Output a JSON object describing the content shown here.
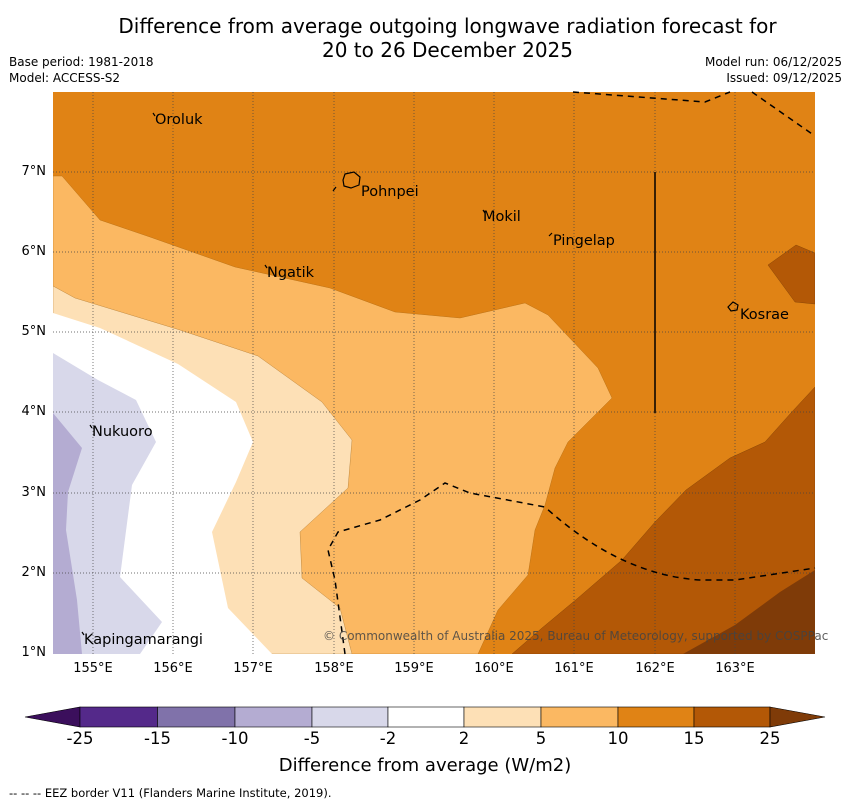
{
  "title_line1": "Difference from average outgoing longwave radiation forecast for",
  "title_line2": "20 to 26 December 2025",
  "meta": {
    "base_period": "Base period: 1981-2018",
    "model": "Model: ACCESS-S2",
    "model_run": "Model run: 06/12/2025",
    "issued": "Issued: 09/12/2025"
  },
  "map": {
    "lat_labels": [
      "7°N",
      "6°N",
      "5°N",
      "4°N",
      "3°N",
      "2°N",
      "1°N"
    ],
    "lon_labels": [
      "155°E",
      "156°E",
      "157°E",
      "158°E",
      "159°E",
      "160°E",
      "161°E",
      "162°E",
      "163°E"
    ],
    "places": {
      "oroluk": "Oroluk",
      "pohnpei": "Pohnpei",
      "mokil": "Mokil",
      "pingelap": "Pingelap",
      "ngatik": "Ngatik",
      "kosrae": "Kosrae",
      "nukuoro": "Nukuoro",
      "kapingamarangi": "Kapingamarangi"
    },
    "copyright": "© Commonwealth of Australia 2025, Bureau of Meteorology, supported by COSPPac"
  },
  "colorbar": {
    "labels": [
      "-25",
      "-15",
      "-10",
      "-5",
      "-2",
      "2",
      "5",
      "10",
      "15",
      "25"
    ],
    "colors": [
      "#3b0f5c",
      "#54298a",
      "#8072aa",
      "#b4acd2",
      "#d8d8ea",
      "#ffffff",
      "#fde0b6",
      "#fbb862",
      "#e08315",
      "#b35806",
      "#7f3b08"
    ],
    "title": "Difference from average (W/m2)"
  },
  "footnote": "--  --  -- EEZ border V11 (Flanders Marine Institute, 2019)."
}
